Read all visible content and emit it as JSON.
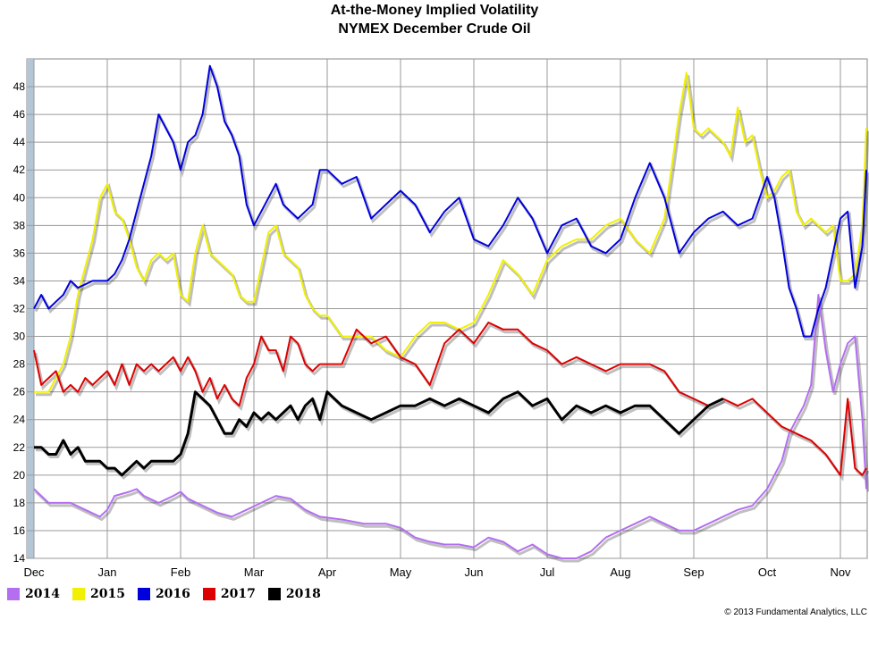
{
  "chart_data": {
    "type": "line",
    "title": "At-the-Money Implied Volatility",
    "subtitle": "NYMEX December Crude Oil",
    "xlabel": "",
    "ylabel": "",
    "x_tick_labels": [
      "Dec",
      "Jan",
      "Feb",
      "Mar",
      "Apr",
      "May",
      "Jun",
      "Jul",
      "Aug",
      "Sep",
      "Oct",
      "Nov"
    ],
    "y_tick_labels": [
      "14",
      "16",
      "18",
      "20",
      "22",
      "24",
      "26",
      "28",
      "30",
      "32",
      "34",
      "36",
      "38",
      "40",
      "42",
      "44",
      "46",
      "48"
    ],
    "ylim": [
      14,
      50
    ],
    "xlim": [
      0,
      11.45
    ],
    "grid": true,
    "legend_position": "bottom-left",
    "series": [
      {
        "name": "2014",
        "color": "#b36ff0",
        "x": [
          0,
          0.1,
          0.2,
          0.3,
          0.5,
          0.7,
          0.9,
          1.0,
          1.1,
          1.3,
          1.4,
          1.5,
          1.7,
          1.9,
          2.0,
          2.1,
          2.3,
          2.5,
          2.7,
          2.9,
          3.1,
          3.3,
          3.5,
          3.7,
          3.9,
          4.2,
          4.5,
          4.8,
          5.0,
          5.2,
          5.4,
          5.6,
          5.8,
          6.0,
          6.2,
          6.4,
          6.6,
          6.8,
          7.0,
          7.2,
          7.4,
          7.6,
          7.8,
          8.0,
          8.2,
          8.4,
          8.6,
          8.8,
          9.0,
          9.2,
          9.4,
          9.6,
          9.8,
          10.0,
          10.2,
          10.3,
          10.4,
          10.5,
          10.6,
          10.7,
          10.8,
          10.9,
          11.0,
          11.1,
          11.2,
          11.3,
          11.45
        ],
        "y": [
          19,
          18.5,
          18,
          18,
          18,
          17.5,
          17,
          17.5,
          18.5,
          18.8,
          19,
          18.5,
          18,
          18.5,
          18.8,
          18.3,
          17.8,
          17.3,
          17,
          17.5,
          18,
          18.5,
          18.3,
          17.5,
          17,
          16.8,
          16.5,
          16.5,
          16.2,
          15.5,
          15.2,
          15,
          15,
          14.8,
          15.5,
          15.2,
          14.5,
          15,
          14.3,
          14,
          14,
          14.5,
          15.5,
          16,
          16.5,
          17,
          16.5,
          16,
          16,
          16.5,
          17,
          17.5,
          17.8,
          19,
          21,
          23,
          24,
          25,
          26.5,
          33,
          29,
          26,
          28,
          29.5,
          30,
          24,
          19
        ]
      },
      {
        "name": "2015",
        "color": "#f0f000",
        "x": [
          0,
          0.1,
          0.2,
          0.3,
          0.4,
          0.5,
          0.6,
          0.8,
          0.9,
          1.0,
          1.1,
          1.2,
          1.3,
          1.4,
          1.5,
          1.6,
          1.7,
          1.8,
          1.9,
          2.0,
          2.1,
          2.2,
          2.3,
          2.4,
          2.5,
          2.6,
          2.7,
          2.8,
          2.9,
          3.0,
          3.1,
          3.2,
          3.3,
          3.4,
          3.5,
          3.6,
          3.7,
          3.8,
          3.9,
          4.0,
          4.2,
          4.4,
          4.6,
          4.8,
          5.0,
          5.2,
          5.4,
          5.6,
          5.8,
          6.0,
          6.2,
          6.4,
          6.6,
          6.8,
          7.0,
          7.2,
          7.4,
          7.6,
          7.8,
          8.0,
          8.2,
          8.4,
          8.6,
          8.8,
          8.9,
          9.0,
          9.1,
          9.2,
          9.3,
          9.4,
          9.5,
          9.6,
          9.7,
          9.8,
          9.9,
          10.0,
          10.1,
          10.2,
          10.3,
          10.4,
          10.5,
          10.6,
          10.7,
          10.8,
          10.9,
          11.0,
          11.1,
          11.2,
          11.3,
          11.45
        ],
        "y": [
          26,
          26,
          26,
          27,
          28,
          30,
          33,
          37,
          40,
          41,
          39,
          38.5,
          37,
          35,
          34,
          35.5,
          36,
          35.5,
          36,
          33,
          32.5,
          36,
          38,
          36,
          35.5,
          35,
          34.5,
          33,
          32.5,
          32.5,
          35,
          37.5,
          38,
          36,
          35.5,
          35,
          33,
          32,
          31.5,
          31.5,
          30,
          30,
          30,
          29,
          28.5,
          30,
          31,
          31,
          30.5,
          31,
          33,
          35.5,
          34.5,
          33,
          35.5,
          36.5,
          37,
          37,
          38,
          38.5,
          37,
          36,
          38.5,
          46,
          49,
          45,
          44.5,
          45,
          44.5,
          44,
          43,
          46.5,
          44,
          44.5,
          42,
          40,
          40.5,
          41.5,
          42,
          39,
          38,
          38.5,
          38,
          37.5,
          38,
          34,
          34,
          34.5,
          38,
          45
        ]
      },
      {
        "name": "2016",
        "color": "#0000dd",
        "x": [
          0,
          0.1,
          0.2,
          0.3,
          0.4,
          0.5,
          0.6,
          0.8,
          0.9,
          1.0,
          1.1,
          1.2,
          1.3,
          1.4,
          1.5,
          1.6,
          1.7,
          1.8,
          1.9,
          2.0,
          2.1,
          2.2,
          2.3,
          2.4,
          2.5,
          2.6,
          2.7,
          2.8,
          2.9,
          3.0,
          3.1,
          3.2,
          3.3,
          3.4,
          3.5,
          3.6,
          3.7,
          3.8,
          3.9,
          4.0,
          4.2,
          4.4,
          4.6,
          4.8,
          5.0,
          5.2,
          5.4,
          5.6,
          5.8,
          6.0,
          6.2,
          6.4,
          6.6,
          6.8,
          7.0,
          7.2,
          7.4,
          7.6,
          7.8,
          8.0,
          8.2,
          8.4,
          8.6,
          8.8,
          9.0,
          9.2,
          9.4,
          9.6,
          9.8,
          10.0,
          10.1,
          10.2,
          10.3,
          10.4,
          10.5,
          10.6,
          10.7,
          10.8,
          10.9,
          11.0,
          11.1,
          11.2,
          11.3,
          11.45
        ],
        "y": [
          32,
          33,
          32,
          32.5,
          33,
          34,
          33.5,
          34,
          34,
          34,
          34.5,
          35.5,
          37,
          39,
          41,
          43,
          46,
          45,
          44,
          42,
          44,
          44.5,
          46,
          49.5,
          48,
          45.5,
          44.5,
          43,
          39.5,
          38,
          39,
          40,
          41,
          39.5,
          39,
          38.5,
          39,
          39.5,
          42,
          42,
          41,
          41.5,
          38.5,
          39.5,
          40.5,
          39.5,
          37.5,
          39,
          40,
          37,
          36.5,
          38,
          40,
          38.5,
          36,
          38,
          38.5,
          36.5,
          36,
          37,
          40,
          42.5,
          40,
          36,
          37.5,
          38.5,
          39,
          38,
          38.5,
          41.5,
          40,
          37,
          33.5,
          32,
          30,
          30,
          32,
          33.5,
          36,
          38.5,
          39,
          33.5,
          36.5,
          42
        ]
      },
      {
        "name": "2017",
        "color": "#dd0000",
        "x": [
          0,
          0.1,
          0.2,
          0.3,
          0.4,
          0.5,
          0.6,
          0.7,
          0.8,
          0.9,
          1.0,
          1.1,
          1.2,
          1.3,
          1.4,
          1.5,
          1.6,
          1.7,
          1.8,
          1.9,
          2.0,
          2.1,
          2.2,
          2.3,
          2.4,
          2.5,
          2.6,
          2.7,
          2.8,
          2.9,
          3.0,
          3.1,
          3.2,
          3.3,
          3.4,
          3.5,
          3.6,
          3.7,
          3.8,
          3.9,
          4.0,
          4.2,
          4.4,
          4.6,
          4.8,
          5.0,
          5.2,
          5.4,
          5.6,
          5.8,
          6.0,
          6.2,
          6.4,
          6.6,
          6.8,
          7.0,
          7.2,
          7.4,
          7.6,
          7.8,
          8.0,
          8.2,
          8.4,
          8.6,
          8.8,
          9.0,
          9.2,
          9.4,
          9.6,
          9.8,
          10.0,
          10.2,
          10.4,
          10.6,
          10.8,
          11.0,
          11.1,
          11.2,
          11.3,
          11.45
        ],
        "y": [
          29,
          26.5,
          27,
          27.5,
          26,
          26.5,
          26,
          27,
          26.5,
          27,
          27.5,
          26.5,
          28,
          26.5,
          28,
          27.5,
          28,
          27.5,
          28,
          28.5,
          27.5,
          28.5,
          27.5,
          26,
          27,
          25.5,
          26.5,
          25.5,
          25,
          27,
          28,
          30,
          29,
          29,
          27.5,
          30,
          29.5,
          28,
          27.5,
          28,
          28,
          28,
          30.5,
          29.5,
          30,
          28.5,
          28,
          26.5,
          29.5,
          30.5,
          29.5,
          31,
          30.5,
          30.5,
          29.5,
          29,
          28,
          28.5,
          28,
          27.5,
          28,
          28,
          28,
          27.5,
          26,
          25.5,
          25,
          25.5,
          25,
          25.5,
          24.5,
          23.5,
          23,
          22.5,
          21.5,
          20,
          25.5,
          20.5,
          20,
          20.5
        ]
      },
      {
        "name": "2018",
        "color": "#000000",
        "x": [
          0,
          0.1,
          0.2,
          0.3,
          0.4,
          0.5,
          0.6,
          0.7,
          0.8,
          0.9,
          1.0,
          1.1,
          1.2,
          1.3,
          1.4,
          1.5,
          1.6,
          1.7,
          1.8,
          1.9,
          2.0,
          2.1,
          2.2,
          2.3,
          2.4,
          2.5,
          2.6,
          2.7,
          2.8,
          2.9,
          3.0,
          3.1,
          3.2,
          3.3,
          3.4,
          3.5,
          3.6,
          3.7,
          3.8,
          3.9,
          4.0,
          4.2,
          4.4,
          4.6,
          4.8,
          5.0,
          5.2,
          5.4,
          5.6,
          5.8,
          6.0,
          6.2,
          6.4,
          6.6,
          6.8,
          7.0,
          7.2,
          7.4,
          7.6,
          7.8,
          8.0,
          8.2,
          8.4,
          8.6,
          8.8,
          9.0,
          9.2,
          9.4
        ],
        "y": [
          22,
          22,
          21.5,
          21.5,
          22.5,
          21.5,
          22,
          21,
          21,
          21,
          20.5,
          20.5,
          20,
          20.5,
          21,
          20.5,
          21,
          21,
          21,
          21,
          21.5,
          23,
          26,
          25.5,
          25,
          24,
          23,
          23,
          24,
          23.5,
          24.5,
          24,
          24.5,
          24,
          24.5,
          25,
          24,
          25,
          25.5,
          24,
          26,
          25,
          24.5,
          24,
          24.5,
          25,
          25,
          25.5,
          25,
          25.5,
          25,
          24.5,
          25.5,
          26,
          25,
          25.5,
          24,
          25,
          24.5,
          25,
          24.5,
          25,
          25,
          24,
          23,
          24,
          25,
          25.5
        ]
      }
    ]
  },
  "legend": {
    "items": [
      "2014",
      "2015",
      "2016",
      "2017",
      "2018"
    ]
  },
  "copyright": "© 2013 Fundamental Analytics, LLC"
}
